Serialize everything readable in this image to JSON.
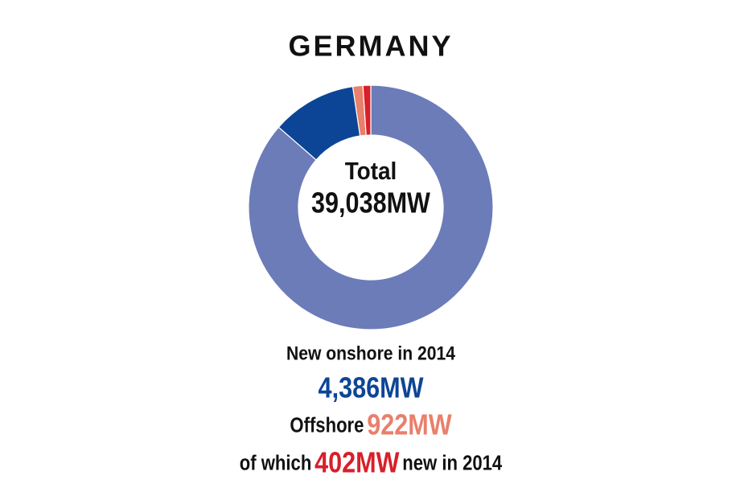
{
  "chart_data": {
    "type": "donut",
    "title": "GERMANY",
    "center_label": "Total",
    "total": 39038,
    "total_label": "39,038MW",
    "categories": [
      null,
      null,
      null,
      null
    ],
    "values": [
      33730,
      4386,
      520,
      402
    ],
    "value_labels": [
      null,
      "4,386MW",
      null,
      "402MW"
    ],
    "colors": [
      "#6c7cb9",
      "#0d4596",
      "#e8806b",
      "#d81f2a"
    ],
    "annotations": {
      "onshore_heading": "New onshore in 2014",
      "offshore_prefix": "Offshore",
      "offshore_total": 922,
      "offshore_label": "922MW",
      "of_which": "of which",
      "new_suffix": "new in 2014"
    }
  }
}
